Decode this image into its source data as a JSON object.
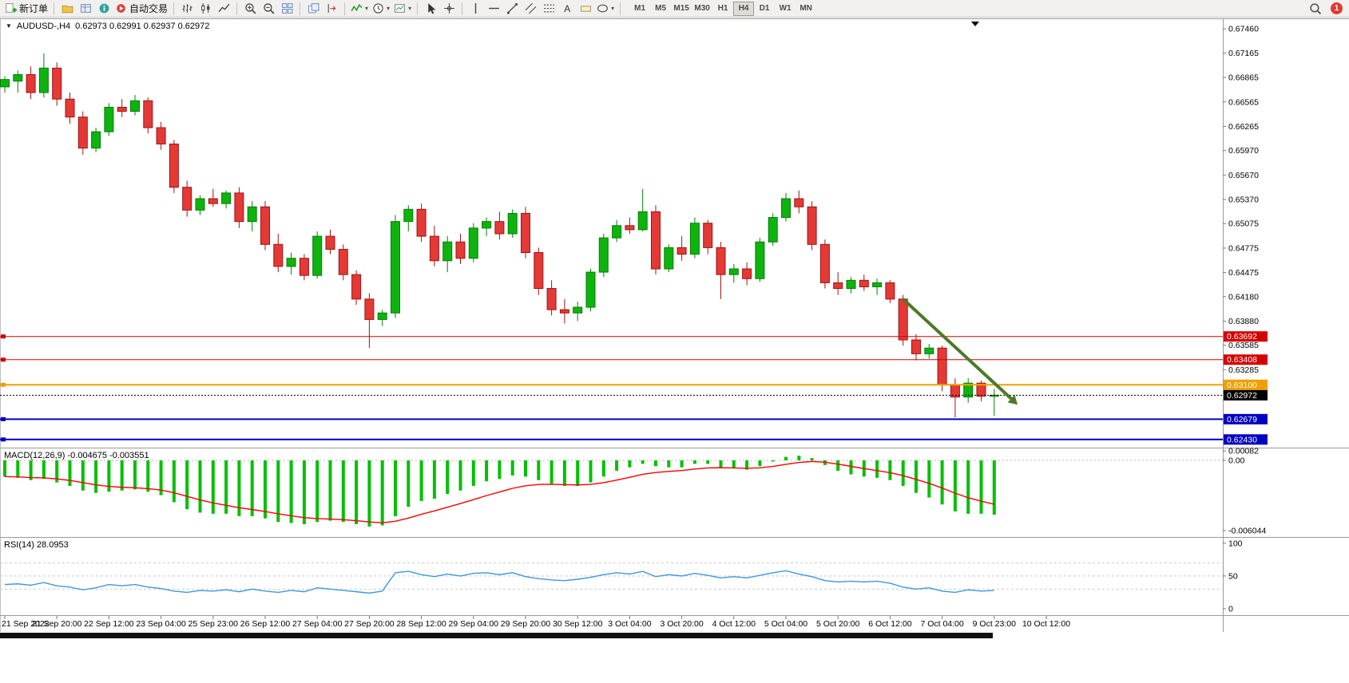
{
  "icons": {
    "caret_down": "▼",
    "menu_caret": "▾",
    "text_tool_glyph": "A"
  },
  "toolbar": {
    "new_order": "新订单",
    "auto_trading": "自动交易",
    "timeframes": [
      "M1",
      "M5",
      "M15",
      "M30",
      "H1",
      "H4",
      "D1",
      "W1",
      "MN"
    ],
    "active_timeframe": "H4",
    "notification_count": "1"
  },
  "chart": {
    "title": "AUDUSD-,H4",
    "quote_text": "0.62973 0.62991 0.62937 0.62972"
  },
  "macd": {
    "name": "MACD(12,26,9)",
    "values_text": "-0.004675 -0.003551",
    "histogram_color": "#00c000",
    "signal_color": "#ff0000",
    "scale_labels": [
      {
        "value": 0.00082,
        "text": "0.00082"
      },
      {
        "value": 0,
        "text": "0.00"
      },
      {
        "value": -0.006044,
        "text": "-0.006044"
      }
    ],
    "histogram": [
      -0.0014,
      -0.0015,
      -0.0017,
      -0.0016,
      -0.0019,
      -0.0022,
      -0.0026,
      -0.0028,
      -0.0027,
      -0.0026,
      -0.0025,
      -0.0027,
      -0.003,
      -0.0036,
      -0.0042,
      -0.0045,
      -0.0046,
      -0.0046,
      -0.0048,
      -0.0048,
      -0.005,
      -0.0053,
      -0.0054,
      -0.0055,
      -0.0053,
      -0.0052,
      -0.0053,
      -0.0055,
      -0.0057,
      -0.0056,
      -0.0048,
      -0.004,
      -0.0035,
      -0.0033,
      -0.0029,
      -0.0026,
      -0.0022,
      -0.0018,
      -0.0016,
      -0.0013,
      -0.0014,
      -0.0017,
      -0.002,
      -0.0022,
      -0.0022,
      -0.0019,
      -0.0014,
      -0.0009,
      -0.0006,
      -0.0003,
      -0.0005,
      -0.0006,
      -0.0006,
      -0.0003,
      -0.0003,
      -0.0006,
      -0.0007,
      -0.0008,
      -0.0005,
      -0.0001,
      0.0003,
      0.0004,
      0.0002,
      -0.0004,
      -0.0009,
      -0.0012,
      -0.0014,
      -0.0015,
      -0.0017,
      -0.0022,
      -0.0028,
      -0.0032,
      -0.0038,
      -0.0044,
      -0.0046,
      -0.0046,
      -0.004675
    ]
  },
  "rsi": {
    "name": "RSI(14)",
    "value_text": "28.0953",
    "line_color": "#3e97de",
    "levels": [
      70,
      50,
      30
    ],
    "scale_labels": [
      {
        "value": 100,
        "text": "100"
      },
      {
        "value": 50,
        "text": "50"
      },
      {
        "value": 0,
        "text": "0"
      }
    ],
    "values": [
      37,
      38,
      36,
      40,
      35,
      33,
      29,
      32,
      37,
      35,
      37,
      33,
      31,
      27,
      25,
      28,
      27,
      29,
      26,
      30,
      27,
      25,
      28,
      26,
      32,
      30,
      28,
      26,
      24,
      27,
      55,
      57,
      52,
      49,
      53,
      50,
      54,
      55,
      52,
      55,
      49,
      46,
      44,
      43,
      45,
      48,
      52,
      55,
      53,
      57,
      49,
      52,
      50,
      54,
      51,
      47,
      49,
      47,
      51,
      55,
      58,
      53,
      49,
      43,
      41,
      42,
      41,
      42,
      39,
      33,
      30,
      32,
      27,
      25,
      29,
      27,
      28.1
    ]
  },
  "chart_data": {
    "type": "candlestick",
    "symbol": "AUDUSD",
    "period": "H4",
    "up_color": "#0db40d",
    "up_border": "#067d06",
    "down_color": "#e53935",
    "down_border": "#9c1414",
    "price_axis_labels": [
      "0.67460",
      "0.67165",
      "0.66865",
      "0.66565",
      "0.66265",
      "0.65970",
      "0.65670",
      "0.65370",
      "0.65075",
      "0.64775",
      "0.64475",
      "0.64180",
      "0.63880",
      "0.63585",
      "0.63285"
    ],
    "price_range": [
      0.6234,
      0.6756
    ],
    "hlines": [
      {
        "price": 0.63692,
        "label": "0.63692",
        "color": "#d40000",
        "width": 1
      },
      {
        "price": 0.63408,
        "label": "0.63408",
        "color": "#d40000",
        "width": 1
      },
      {
        "price": 0.631,
        "label": "0.63100",
        "color": "#efa000",
        "width": 2
      },
      {
        "price": 0.62679,
        "label": "0.62679",
        "color": "#0000c0",
        "width": 2
      },
      {
        "price": 0.6243,
        "label": "0.62430",
        "color": "#0000c0",
        "width": 2
      }
    ],
    "current_price": {
      "price": 0.62972,
      "label": "0.62972",
      "color": "#000000"
    },
    "arrow": {
      "from_bar": 69,
      "from_price": 0.6415,
      "to_bar": 77.3,
      "to_price": 0.6293,
      "color": "#4c7a28"
    },
    "time_labels": [
      {
        "i": 0,
        "t": "21 Sep 2022"
      },
      {
        "i": 4,
        "t": "21 Sep 20:00"
      },
      {
        "i": 8,
        "t": "22 Sep 12:00"
      },
      {
        "i": 12,
        "t": "23 Sep 04:00"
      },
      {
        "i": 16,
        "t": "25 Sep 23:00"
      },
      {
        "i": 20,
        "t": "26 Sep 12:00"
      },
      {
        "i": 24,
        "t": "27 Sep 04:00"
      },
      {
        "i": 28,
        "t": "27 Sep 20:00"
      },
      {
        "i": 32,
        "t": "28 Sep 12:00"
      },
      {
        "i": 36,
        "t": "29 Sep 04:00"
      },
      {
        "i": 40,
        "t": "29 Sep 20:00"
      },
      {
        "i": 44,
        "t": "30 Sep 12:00"
      },
      {
        "i": 48,
        "t": "3 Oct 04:00"
      },
      {
        "i": 52,
        "t": "3 Oct 20:00"
      },
      {
        "i": 56,
        "t": "4 Oct 12:00"
      },
      {
        "i": 60,
        "t": "5 Oct 04:00"
      },
      {
        "i": 64,
        "t": "5 Oct 20:00"
      },
      {
        "i": 68,
        "t": "6 Oct 12:00"
      },
      {
        "i": 72,
        "t": "7 Oct 04:00"
      },
      {
        "i": 76,
        "t": "9 Oct 23:00"
      },
      {
        "i": 80,
        "t": "10 Oct 12:00"
      }
    ],
    "candles": [
      [
        0.6675,
        0.6688,
        0.6668,
        0.6684
      ],
      [
        0.6682,
        0.6695,
        0.6668,
        0.669
      ],
      [
        0.669,
        0.67,
        0.666,
        0.6668
      ],
      [
        0.6668,
        0.6716,
        0.6662,
        0.6698
      ],
      [
        0.6698,
        0.6705,
        0.6652,
        0.666
      ],
      [
        0.666,
        0.6668,
        0.663,
        0.6638
      ],
      [
        0.6638,
        0.6645,
        0.6592,
        0.66
      ],
      [
        0.66,
        0.6625,
        0.6595,
        0.662
      ],
      [
        0.662,
        0.6655,
        0.6615,
        0.665
      ],
      [
        0.665,
        0.666,
        0.6638,
        0.6645
      ],
      [
        0.6645,
        0.6665,
        0.664,
        0.6658
      ],
      [
        0.6658,
        0.6662,
        0.6618,
        0.6625
      ],
      [
        0.6625,
        0.6632,
        0.6598,
        0.6605
      ],
      [
        0.6605,
        0.661,
        0.6545,
        0.6552
      ],
      [
        0.6552,
        0.656,
        0.6516,
        0.6524
      ],
      [
        0.6524,
        0.6542,
        0.6518,
        0.6538
      ],
      [
        0.6538,
        0.655,
        0.6528,
        0.6532
      ],
      [
        0.6532,
        0.6548,
        0.6526,
        0.6545
      ],
      [
        0.6545,
        0.6552,
        0.6502,
        0.651
      ],
      [
        0.651,
        0.6535,
        0.6498,
        0.6528
      ],
      [
        0.6528,
        0.6535,
        0.6475,
        0.6482
      ],
      [
        0.6482,
        0.6495,
        0.6448,
        0.6455
      ],
      [
        0.6455,
        0.6472,
        0.6445,
        0.6465
      ],
      [
        0.6465,
        0.647,
        0.6438,
        0.6444
      ],
      [
        0.6444,
        0.6498,
        0.644,
        0.6492
      ],
      [
        0.6492,
        0.65,
        0.647,
        0.6476
      ],
      [
        0.6476,
        0.6482,
        0.6438,
        0.6445
      ],
      [
        0.6445,
        0.645,
        0.6408,
        0.6415
      ],
      [
        0.6415,
        0.6422,
        0.6355,
        0.639
      ],
      [
        0.639,
        0.6402,
        0.6382,
        0.6398
      ],
      [
        0.6398,
        0.6518,
        0.6392,
        0.651
      ],
      [
        0.651,
        0.653,
        0.6498,
        0.6525
      ],
      [
        0.6525,
        0.6532,
        0.6485,
        0.6492
      ],
      [
        0.6492,
        0.6505,
        0.6455,
        0.6462
      ],
      [
        0.6462,
        0.6492,
        0.6448,
        0.6485
      ],
      [
        0.6485,
        0.6495,
        0.6458,
        0.6465
      ],
      [
        0.6465,
        0.6508,
        0.646,
        0.6502
      ],
      [
        0.6502,
        0.6515,
        0.6492,
        0.651
      ],
      [
        0.651,
        0.6522,
        0.6488,
        0.6495
      ],
      [
        0.6495,
        0.6525,
        0.649,
        0.652
      ],
      [
        0.652,
        0.6528,
        0.6465,
        0.6472
      ],
      [
        0.6472,
        0.6478,
        0.642,
        0.6428
      ],
      [
        0.6428,
        0.6438,
        0.6395,
        0.6402
      ],
      [
        0.6402,
        0.6415,
        0.6385,
        0.6398
      ],
      [
        0.6398,
        0.6412,
        0.6388,
        0.6405
      ],
      [
        0.6405,
        0.6452,
        0.64,
        0.6448
      ],
      [
        0.6448,
        0.6495,
        0.6442,
        0.649
      ],
      [
        0.649,
        0.6512,
        0.6485,
        0.6505
      ],
      [
        0.6505,
        0.6515,
        0.6495,
        0.65
      ],
      [
        0.65,
        0.655,
        0.6498,
        0.6522
      ],
      [
        0.6522,
        0.653,
        0.6445,
        0.6452
      ],
      [
        0.6452,
        0.6482,
        0.6448,
        0.6478
      ],
      [
        0.6478,
        0.6492,
        0.6462,
        0.647
      ],
      [
        0.647,
        0.6515,
        0.6465,
        0.6508
      ],
      [
        0.6508,
        0.6512,
        0.647,
        0.6478
      ],
      [
        0.6478,
        0.6485,
        0.6415,
        0.6445
      ],
      [
        0.6445,
        0.6458,
        0.6435,
        0.6452
      ],
      [
        0.6452,
        0.646,
        0.6432,
        0.644
      ],
      [
        0.644,
        0.649,
        0.6436,
        0.6485
      ],
      [
        0.6485,
        0.652,
        0.648,
        0.6515
      ],
      [
        0.6515,
        0.6545,
        0.651,
        0.6538
      ],
      [
        0.6538,
        0.6548,
        0.652,
        0.6528
      ],
      [
        0.6528,
        0.6535,
        0.6475,
        0.6482
      ],
      [
        0.6482,
        0.6488,
        0.6428,
        0.6435
      ],
      [
        0.6435,
        0.6448,
        0.642,
        0.6428
      ],
      [
        0.6428,
        0.6442,
        0.6422,
        0.6438
      ],
      [
        0.6438,
        0.6445,
        0.6425,
        0.643
      ],
      [
        0.643,
        0.644,
        0.642,
        0.6435
      ],
      [
        0.6435,
        0.6438,
        0.641,
        0.6415
      ],
      [
        0.6415,
        0.642,
        0.6358,
        0.6365
      ],
      [
        0.6365,
        0.6372,
        0.634,
        0.6348
      ],
      [
        0.6348,
        0.636,
        0.6342,
        0.6355
      ],
      [
        0.6355,
        0.6358,
        0.6302,
        0.631
      ],
      [
        0.631,
        0.6318,
        0.627,
        0.6295
      ],
      [
        0.6295,
        0.6318,
        0.6288,
        0.6312
      ],
      [
        0.6312,
        0.6315,
        0.629,
        0.6296
      ],
      [
        0.6296,
        0.6305,
        0.6272,
        0.62972
      ]
    ]
  }
}
